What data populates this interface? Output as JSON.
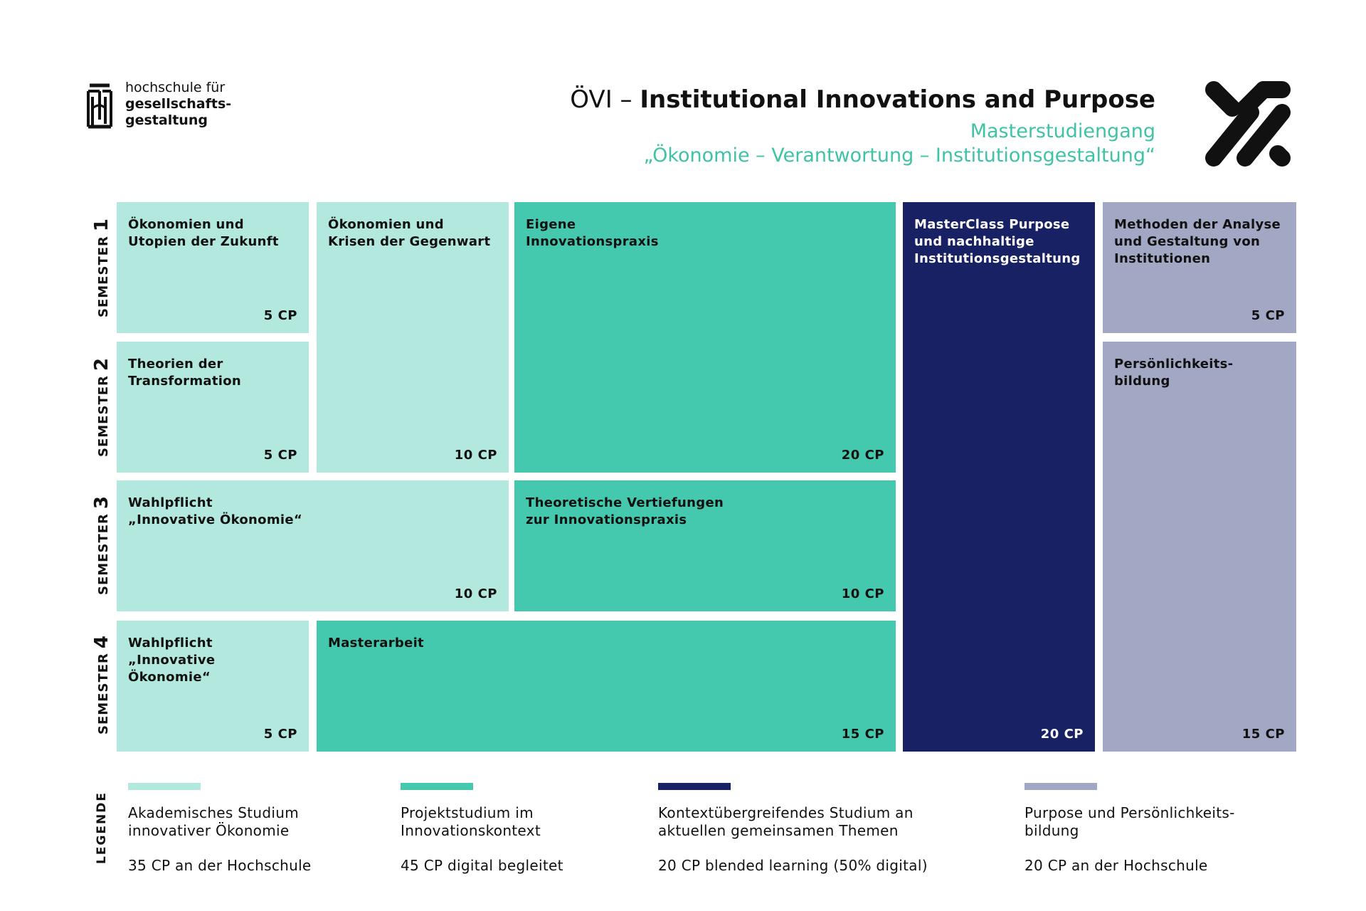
{
  "header": {
    "logo_text": [
      "hochschule für",
      "gesellschafts-",
      "gestaltung"
    ],
    "title_prefix": "ÖVI – ",
    "title_bold": "Institutional Innovations and Purpose",
    "subtitle_1": "Masterstudiengang",
    "subtitle_2": "„Ökonomie – Verantwortung – Institutionsgestaltung“"
  },
  "semesters": [
    {
      "label": "SEMESTER",
      "num": "1"
    },
    {
      "label": "SEMESTER",
      "num": "2"
    },
    {
      "label": "SEMESTER",
      "num": "3"
    },
    {
      "label": "SEMESTER",
      "num": "4"
    }
  ],
  "modules": [
    {
      "lines": [
        "Ökonomien und",
        "Utopien der Zukunft"
      ],
      "cp": "5 CP",
      "category": "akademisch"
    },
    {
      "lines": [
        "Ökonomien und",
        "Krisen der Gegenwart"
      ],
      "cp": "10 CP",
      "category": "akademisch"
    },
    {
      "lines": [
        "Eigene",
        "Innovationspraxis"
      ],
      "cp": "20 CP",
      "category": "projekt"
    },
    {
      "lines": [
        "MasterClass Purpose",
        "und nachhaltige",
        "Institutionsgestaltung"
      ],
      "cp": "20 CP",
      "category": "kontext"
    },
    {
      "lines": [
        "Methoden der Analyse",
        "und Gestaltung von",
        "Institutionen"
      ],
      "cp": "5 CP",
      "category": "purpose"
    },
    {
      "lines": [
        "Theorien der",
        "Transformation"
      ],
      "cp": "5 CP",
      "category": "akademisch"
    },
    {
      "lines": [
        "Persönlichkeits-",
        "bildung"
      ],
      "cp": "15 CP",
      "category": "purpose"
    },
    {
      "lines": [
        "Wahlpflicht",
        "„Innovative Ökonomie“"
      ],
      "cp": "10 CP",
      "category": "akademisch"
    },
    {
      "lines": [
        "Theoretische Vertiefungen",
        "zur Innovationspraxis"
      ],
      "cp": "10 CP",
      "category": "projekt"
    },
    {
      "lines": [
        "Wahlpflicht",
        "„Innovative Ökonomie“"
      ],
      "cp": "5 CP",
      "category": "akademisch"
    },
    {
      "lines": [
        "Masterarbeit"
      ],
      "cp": "15 CP",
      "category": "projekt"
    }
  ],
  "legend": {
    "label": "LEGENDE",
    "items": [
      {
        "title": [
          "Akademisches Studium",
          "innovativer Ökonomie"
        ],
        "cp": "35 CP an der Hochschule",
        "color": "#b3e8df"
      },
      {
        "title": [
          "Projektstudium im",
          "Innovationskontext"
        ],
        "cp": "45 CP digital begleitet",
        "color": "#45c9ae"
      },
      {
        "title": [
          "Kontextübergreifendes Studium an",
          "aktuellen gemeinsamen Themen"
        ],
        "cp": "20 CP blended learning (50% digital)",
        "color": "#172163"
      },
      {
        "title": [
          "Purpose und Persönlichkeits-",
          "bildung"
        ],
        "cp": "20 CP an der Hochschule",
        "color": "#a2a7c3"
      }
    ]
  },
  "colors": {
    "light": "#b3e8df",
    "teal": "#45c9ae",
    "navy": "#172163",
    "grey": "#a2a7c3",
    "accent_text": "#3fc3a6"
  }
}
